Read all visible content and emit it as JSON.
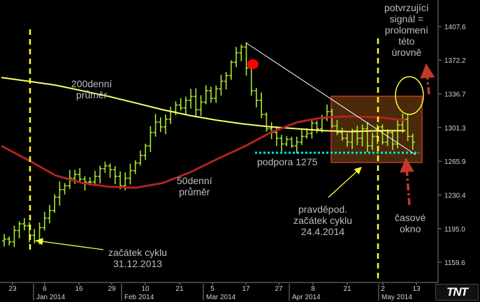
{
  "chart_data": {
    "type": "candlestick",
    "y_axis": {
      "ticks": [
        "1407.6",
        "1372.2",
        "1336.7",
        "1301.3",
        "1265.9",
        "1230.4",
        "1195.0",
        "1159.6"
      ],
      "range": [
        1140,
        1422
      ]
    },
    "x_axis": {
      "day_ticks": [
        "23",
        "6",
        "16",
        "29",
        "10",
        "21",
        "5",
        "17",
        "27",
        "8",
        "21",
        "2",
        "13"
      ],
      "month_labels": [
        "Jan 2014",
        "Feb 2014",
        "Mar 2014",
        "Apr 2014",
        "May 2014"
      ]
    },
    "price_path": [
      1184,
      1181,
      1193,
      1200,
      1198,
      1188,
      1182,
      1196,
      1206,
      1214,
      1228,
      1236,
      1240,
      1248,
      1252,
      1247,
      1244,
      1244,
      1250,
      1258,
      1261,
      1257,
      1250,
      1240,
      1248,
      1256,
      1264,
      1272,
      1282,
      1296,
      1307,
      1302,
      1310,
      1318,
      1325,
      1322,
      1330,
      1334,
      1320,
      1328,
      1340,
      1332,
      1342,
      1350,
      1356,
      1370,
      1380,
      1386,
      1364,
      1340,
      1330,
      1315,
      1300,
      1296,
      1290,
      1284,
      1289,
      1282,
      1286,
      1292,
      1295,
      1306,
      1300,
      1311,
      1318,
      1303,
      1296,
      1290,
      1286,
      1298,
      1290,
      1300,
      1282,
      1292,
      1302,
      1286,
      1296,
      1284,
      1304,
      1310,
      1292,
      1286
    ],
    "series": [
      {
        "name": "200denní průměr",
        "color": "#ffff66",
        "values": [
          1354,
          1350,
          1346,
          1340,
          1334,
          1327,
          1320,
          1314,
          1309,
          1305,
          1302,
          1300,
          1298,
          1297,
          1298,
          1298
        ]
      },
      {
        "name": "50denní průměr",
        "color": "#b22222",
        "values": [
          1282,
          1267,
          1251,
          1243,
          1239,
          1238,
          1243,
          1254,
          1268,
          1281,
          1296,
          1307,
          1312,
          1313,
          1312,
          1309
        ]
      }
    ],
    "support_level": 1275,
    "annotations": {
      "ma200": [
        "200denní",
        "průměr"
      ],
      "ma50": [
        "50denní",
        "průměr"
      ],
      "support": "podpora 1275",
      "cycle_start": [
        "začátek cyklu",
        "31.12.2013"
      ],
      "probable_cycle": [
        "pravděpod.",
        "začátek cyklu",
        "24.4.2014"
      ],
      "confirm_signal": [
        "potvrzující",
        "signál =",
        "prolomení",
        "této",
        "úrovně"
      ],
      "time_window": [
        "časové",
        "okno"
      ]
    },
    "colors": {
      "candles": "#a6e632",
      "ma200": "#ffff66",
      "ma50": "#b22222",
      "support": "#00e5ee",
      "cycle_line": "#ffff33",
      "arrow": "#c0392b",
      "box_fill": "#4a2a0a",
      "box_border": "#c0392b",
      "peak_dot": "#ff0000"
    }
  },
  "branding": {
    "logo": "TNT"
  }
}
